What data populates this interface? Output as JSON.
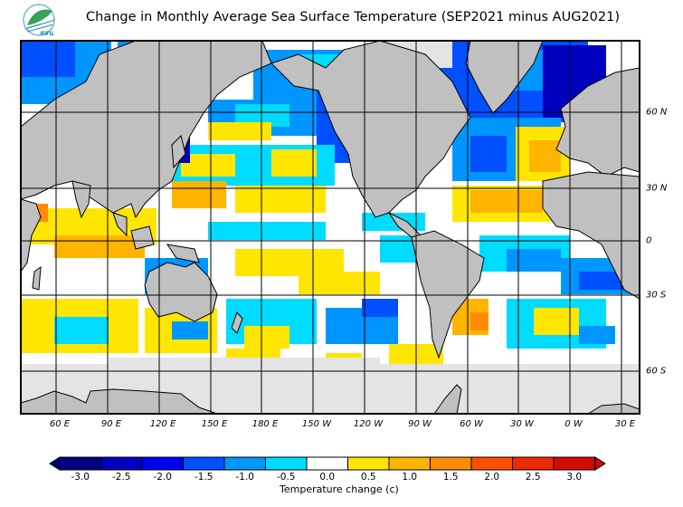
{
  "header": {
    "title": "Change in Monthly Average Sea Surface Temperature (SEP2021 minus AUG2021)",
    "logo_text": "สสน"
  },
  "map": {
    "longitude_labels": [
      "60 E",
      "90 E",
      "120 E",
      "150 E",
      "180 E",
      "150 W",
      "120 W",
      "90 W",
      "60 W",
      "30 W",
      "0 W",
      "30 E"
    ],
    "latitude_labels": [
      "60 N",
      "30 N",
      "0",
      "30 S",
      "60 S"
    ],
    "colors": {
      "land": "#c0c0c0",
      "ice": "#e4e4e4",
      "border": "#000000"
    }
  },
  "legend": {
    "title": "Temperature change  (c)",
    "labels": [
      "-3.0",
      "-2.5",
      "-2.0",
      "-1.5",
      "-1.0",
      "-0.5",
      "0.0",
      "0.5",
      "1.0",
      "1.5",
      "2.0",
      "2.5",
      "3.0"
    ],
    "colors": [
      "#000080",
      "#0000c0",
      "#0000f0",
      "#0050ff",
      "#0096ff",
      "#00dcff",
      "#ffffff",
      "#ffe600",
      "#ffb400",
      "#ff8c00",
      "#ff5000",
      "#f02800",
      "#d20a00"
    ]
  }
}
